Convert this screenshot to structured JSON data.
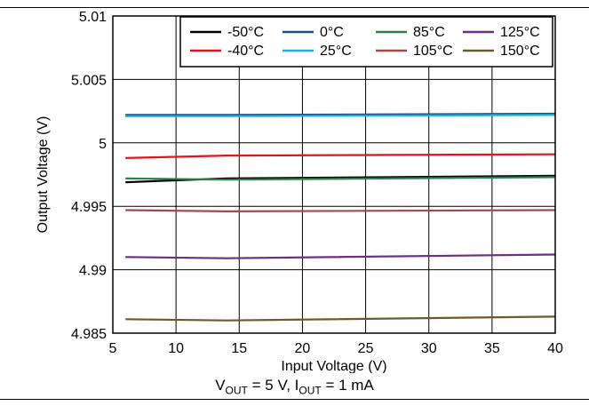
{
  "chart_data": {
    "type": "line",
    "title": "",
    "xlabel": "Input Voltage (V)",
    "ylabel": "Output Voltage (V)",
    "xlim": [
      5,
      40
    ],
    "ylim": [
      4.985,
      5.01
    ],
    "xticks": [
      5,
      10,
      15,
      20,
      25,
      30,
      35,
      40
    ],
    "yticks": [
      4.985,
      4.99,
      4.995,
      5,
      5.005,
      5.01
    ],
    "xtick_labels": [
      "5",
      "10",
      "15",
      "20",
      "25",
      "30",
      "35",
      "40"
    ],
    "ytick_labels": [
      "4.985",
      "4.99",
      "4.995",
      "5",
      "5.005",
      "5.01"
    ],
    "grid": true,
    "legend_position": "top-right",
    "series": [
      {
        "name": "-50°C",
        "color": "#000000",
        "x": [
          6,
          14,
          40
        ],
        "y": [
          4.9969,
          4.9972,
          4.9974
        ]
      },
      {
        "name": "-40°C",
        "color": "#e8121a",
        "x": [
          6,
          14,
          40
        ],
        "y": [
          4.9988,
          4.999,
          4.9991
        ]
      },
      {
        "name": "0°C",
        "color": "#1a4f7a",
        "x": [
          6,
          14,
          40
        ],
        "y": [
          5.0022,
          5.0022,
          5.0023
        ]
      },
      {
        "name": "25°C",
        "color": "#1eb4d8",
        "x": [
          6,
          14,
          40
        ],
        "y": [
          5.0021,
          5.0021,
          5.0022
        ]
      },
      {
        "name": "85°C",
        "color": "#2e7d4a",
        "x": [
          6,
          14,
          40
        ],
        "y": [
          4.9972,
          4.9971,
          4.9973
        ]
      },
      {
        "name": "105°C",
        "color": "#a34a48",
        "x": [
          6,
          14,
          40
        ],
        "y": [
          4.9947,
          4.9946,
          4.9947
        ]
      },
      {
        "name": "125°C",
        "color": "#6b2e82",
        "x": [
          6,
          14,
          40
        ],
        "y": [
          4.991,
          4.9909,
          4.9912
        ]
      },
      {
        "name": "150°C",
        "color": "#6b5a2c",
        "x": [
          6,
          14,
          40
        ],
        "y": [
          4.9861,
          4.986,
          4.9863
        ]
      }
    ]
  },
  "caption": {
    "v": "V",
    "v_sub": "OUT",
    "v_rest": " = 5 V, I",
    "i_sub": "OUT",
    "i_rest": " = 1 mA"
  }
}
